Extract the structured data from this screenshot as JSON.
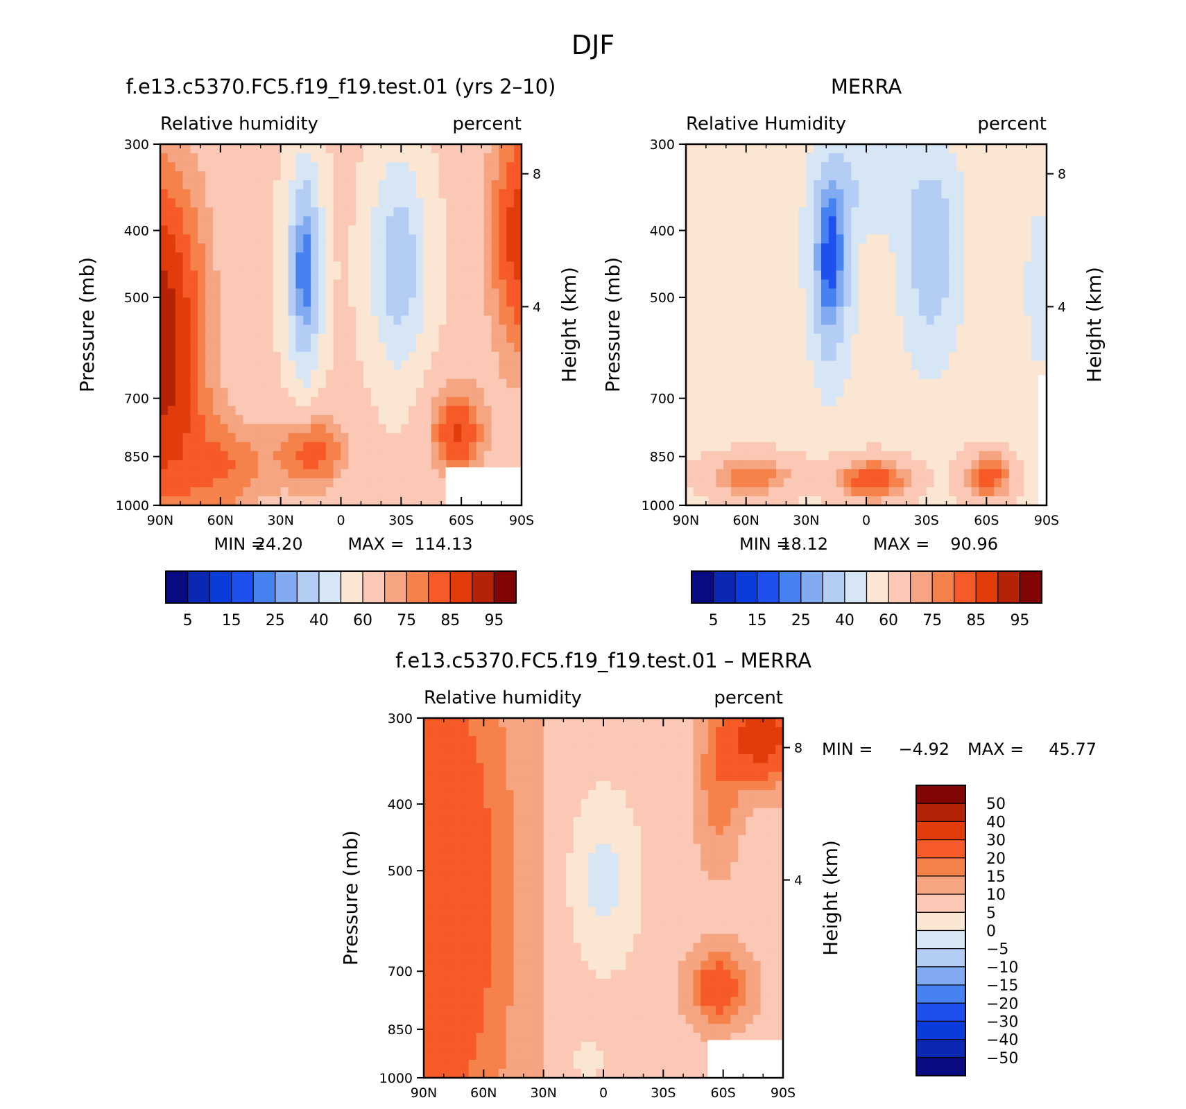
{
  "figure": {
    "suptitle": "DJF"
  },
  "colors": {
    "abs_palette": [
      "#0a0a82",
      "#0a28b4",
      "#0a3cdc",
      "#1e50f0",
      "#4682f0",
      "#82aaf0",
      "#b4cdf5",
      "#d7e6f5",
      "#fae6d2",
      "#fac8b4",
      "#f5a582",
      "#f5824b",
      "#f55a28",
      "#e13c0a",
      "#b42305",
      "#820505"
    ],
    "diff_palette": [
      "#0a0a82",
      "#0a28b4",
      "#0a3cdc",
      "#1e50f0",
      "#4682f0",
      "#82aaf0",
      "#b4cdf5",
      "#d7e6f5",
      "#fae6d2",
      "#fac8b4",
      "#f5a582",
      "#f5824b",
      "#f55a28",
      "#e13c0a",
      "#b42305",
      "#820505"
    ]
  },
  "chart_data": [
    {
      "type": "heatmap",
      "title": "f.e13.c5370.FC5.f19_f19.test.01 (yrs 2–10)",
      "subtitle_left": "Relative humidity",
      "subtitle_right": "percent",
      "ylabel": "Pressure (mb)",
      "ylabel_right": "Height (km)",
      "x": [
        "90N",
        "60N",
        "30N",
        "0",
        "30S",
        "60S",
        "90S"
      ],
      "y": [
        "300",
        "400",
        "500",
        "700",
        "850",
        "1000"
      ],
      "y_right": [
        "8",
        "4"
      ],
      "min_label": "MIN =",
      "min_value": "24.20",
      "max_label": "MAX =",
      "max_value": "114.13",
      "colorbar_labels": [
        "5",
        "15",
        "25",
        "40",
        "60",
        "75",
        "85",
        "95"
      ]
    },
    {
      "type": "heatmap",
      "title": "MERRA",
      "subtitle_left": "Relative Humidity",
      "subtitle_right": "percent",
      "ylabel": "Pressure (mb)",
      "ylabel_right": "Height (km)",
      "x": [
        "90N",
        "60N",
        "30N",
        "0",
        "30S",
        "60S",
        "90S"
      ],
      "y": [
        "300",
        "400",
        "500",
        "700",
        "850",
        "1000"
      ],
      "y_right": [
        "8",
        "4"
      ],
      "min_label": "MIN =",
      "min_value": "18.12",
      "max_label": "MAX =",
      "max_value": "90.96",
      "colorbar_labels": [
        "5",
        "15",
        "25",
        "40",
        "60",
        "75",
        "85",
        "95"
      ]
    },
    {
      "type": "heatmap",
      "title": "f.e13.c5370.FC5.f19_f19.test.01 – MERRA",
      "subtitle_left": "Relative humidity",
      "subtitle_right": "percent",
      "ylabel": "Pressure (mb)",
      "ylabel_right": "Height (km)",
      "x": [
        "90N",
        "60N",
        "30N",
        "0",
        "30S",
        "60S",
        "90S"
      ],
      "y": [
        "300",
        "400",
        "500",
        "700",
        "850",
        "1000"
      ],
      "y_right": [
        "8",
        "4"
      ],
      "min_label": "MIN =",
      "min_value": "−4.92",
      "max_label": "MAX =",
      "max_value": "45.77",
      "colorbar_labels": [
        "50",
        "40",
        "30",
        "20",
        "15",
        "10",
        "5",
        "0",
        "−5",
        "−10",
        "−15",
        "−20",
        "−30",
        "−40",
        "−50"
      ]
    }
  ]
}
